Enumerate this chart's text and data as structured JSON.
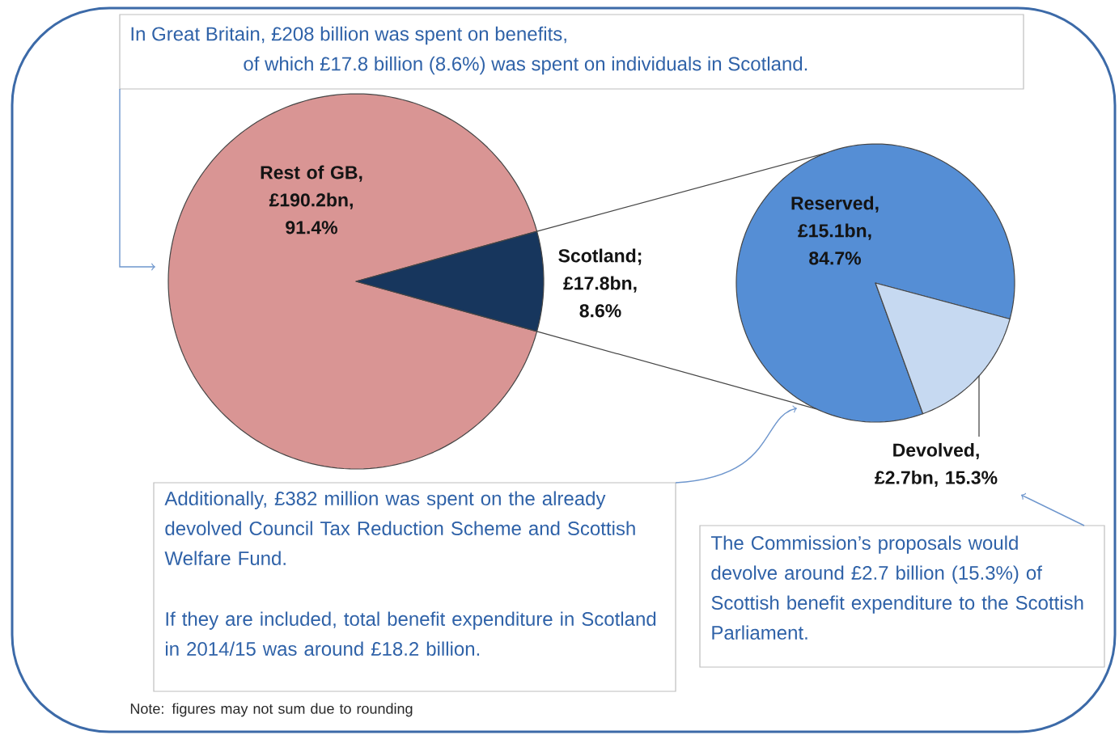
{
  "chart_data": [
    {
      "type": "pie",
      "title": "In Great Britain, £208 billion was spent on benefits,",
      "subtitle": "of which £17.8 billion (8.6%) was spent on individuals in Scotland.",
      "categories": [
        "Rest of GB",
        "Scotland"
      ],
      "values": [
        91.4,
        8.6
      ],
      "value_labels": [
        ", £190.2bn, 91.4%",
        "; £17.8bn, 8.6%"
      ],
      "colors": [
        "#d99594",
        "#17365d"
      ],
      "annotations": [
        "Additionally, £382 million was spent on the already devolved Council Tax Reduction Scheme and Scottish Welfare Fund.",
        "If they are included, total benefit expenditure in Scotland in 2014/15 was around £18.2 billion.",
        "Note: figures may not sum due to rounding"
      ]
    },
    {
      "type": "pie",
      "categories": [
        "Reserved",
        "Devolved"
      ],
      "values": [
        84.7,
        15.3
      ],
      "value_labels": [
        ", £15.1bn, 84.7%",
        ", £2.7bn, 15.3%"
      ],
      "colors": [
        "#558ed5",
        "#c6d9f1"
      ],
      "annotations": [
        "The Commission’s proposals would devolve around £2.7 billion (15.3%) of Scottish benefit expenditure to the Scottish Parliament."
      ]
    }
  ]
}
